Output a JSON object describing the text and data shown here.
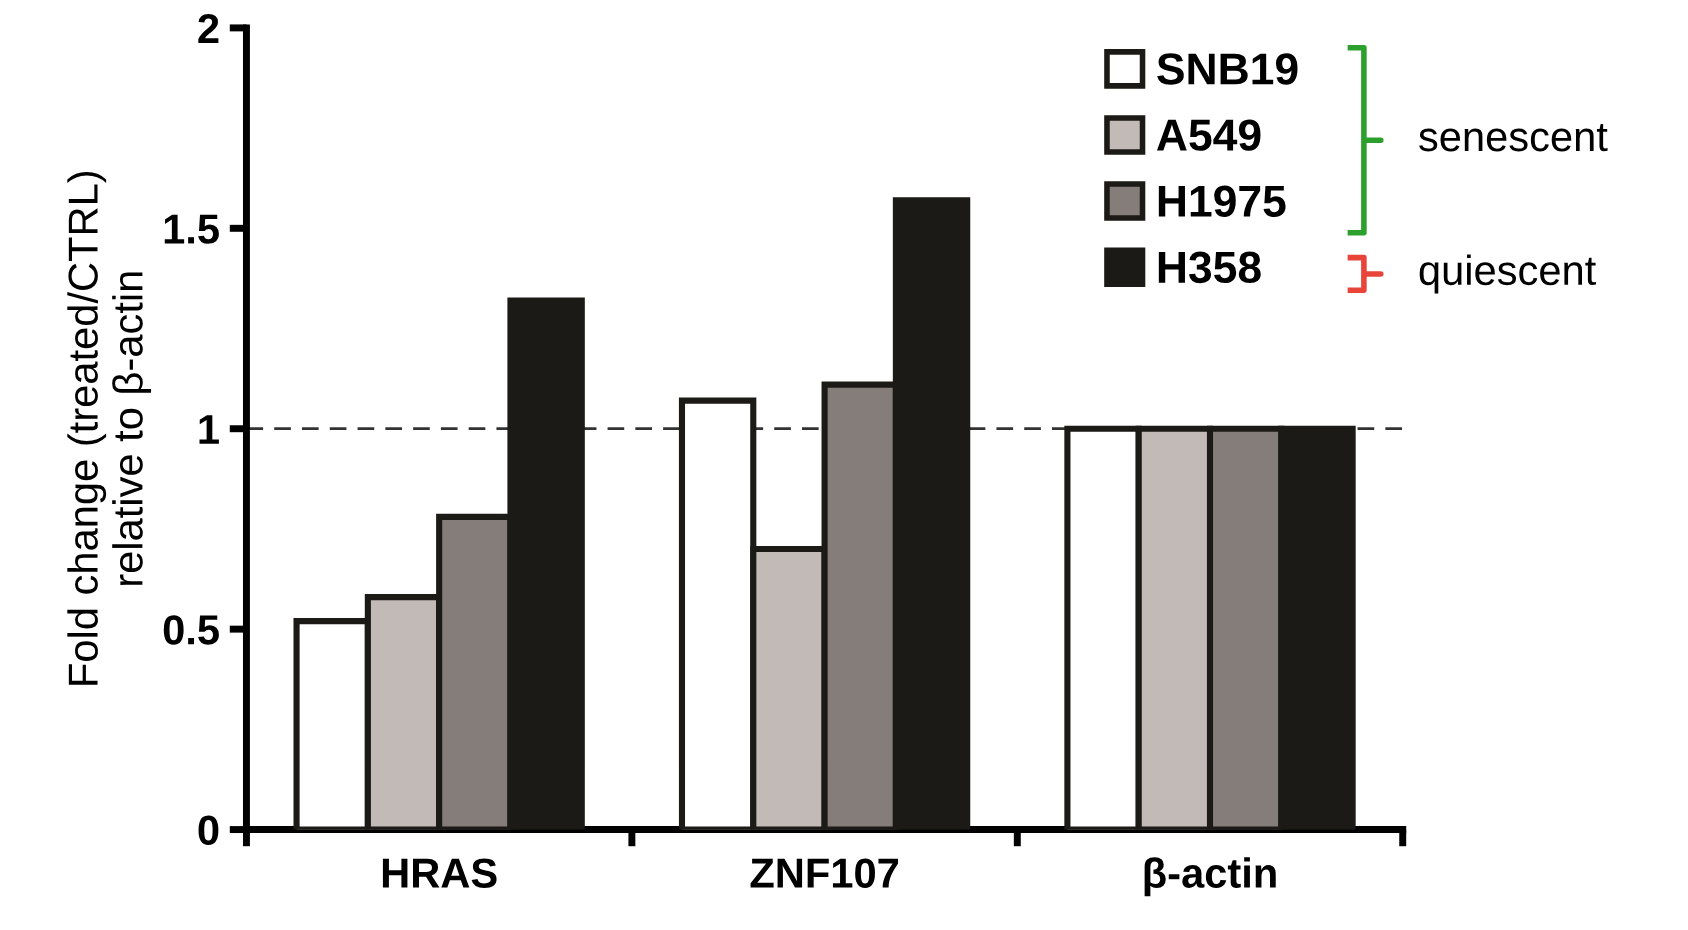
{
  "chart_data": {
    "type": "bar",
    "ylabel": "Fold change (treated/CTRL)\nrelative to β-actin",
    "categories": [
      "HRAS",
      "ZNF107",
      "β-actin"
    ],
    "series": [
      {
        "name": "SNB19",
        "color": "#ffffff",
        "values": [
          0.52,
          1.07,
          1.0
        ]
      },
      {
        "name": "A549",
        "color": "#c2bab6",
        "values": [
          0.58,
          0.7,
          1.0
        ]
      },
      {
        "name": "H1975",
        "color": "#857d79",
        "values": [
          0.78,
          1.11,
          1.0
        ]
      },
      {
        "name": "H358",
        "color": "#1c1a16",
        "values": [
          1.32,
          1.57,
          1.0
        ]
      }
    ],
    "ylim": [
      0,
      2
    ],
    "yticks": [
      0,
      0.5,
      1,
      1.5,
      2
    ],
    "ref_lines": [
      {
        "axis": "y",
        "value": 1,
        "label": null,
        "color": "#333333",
        "line_style": "dashed"
      }
    ],
    "annotations": [
      "senescent",
      "quiescent"
    ],
    "legend": "top right",
    "grid": false
  }
}
